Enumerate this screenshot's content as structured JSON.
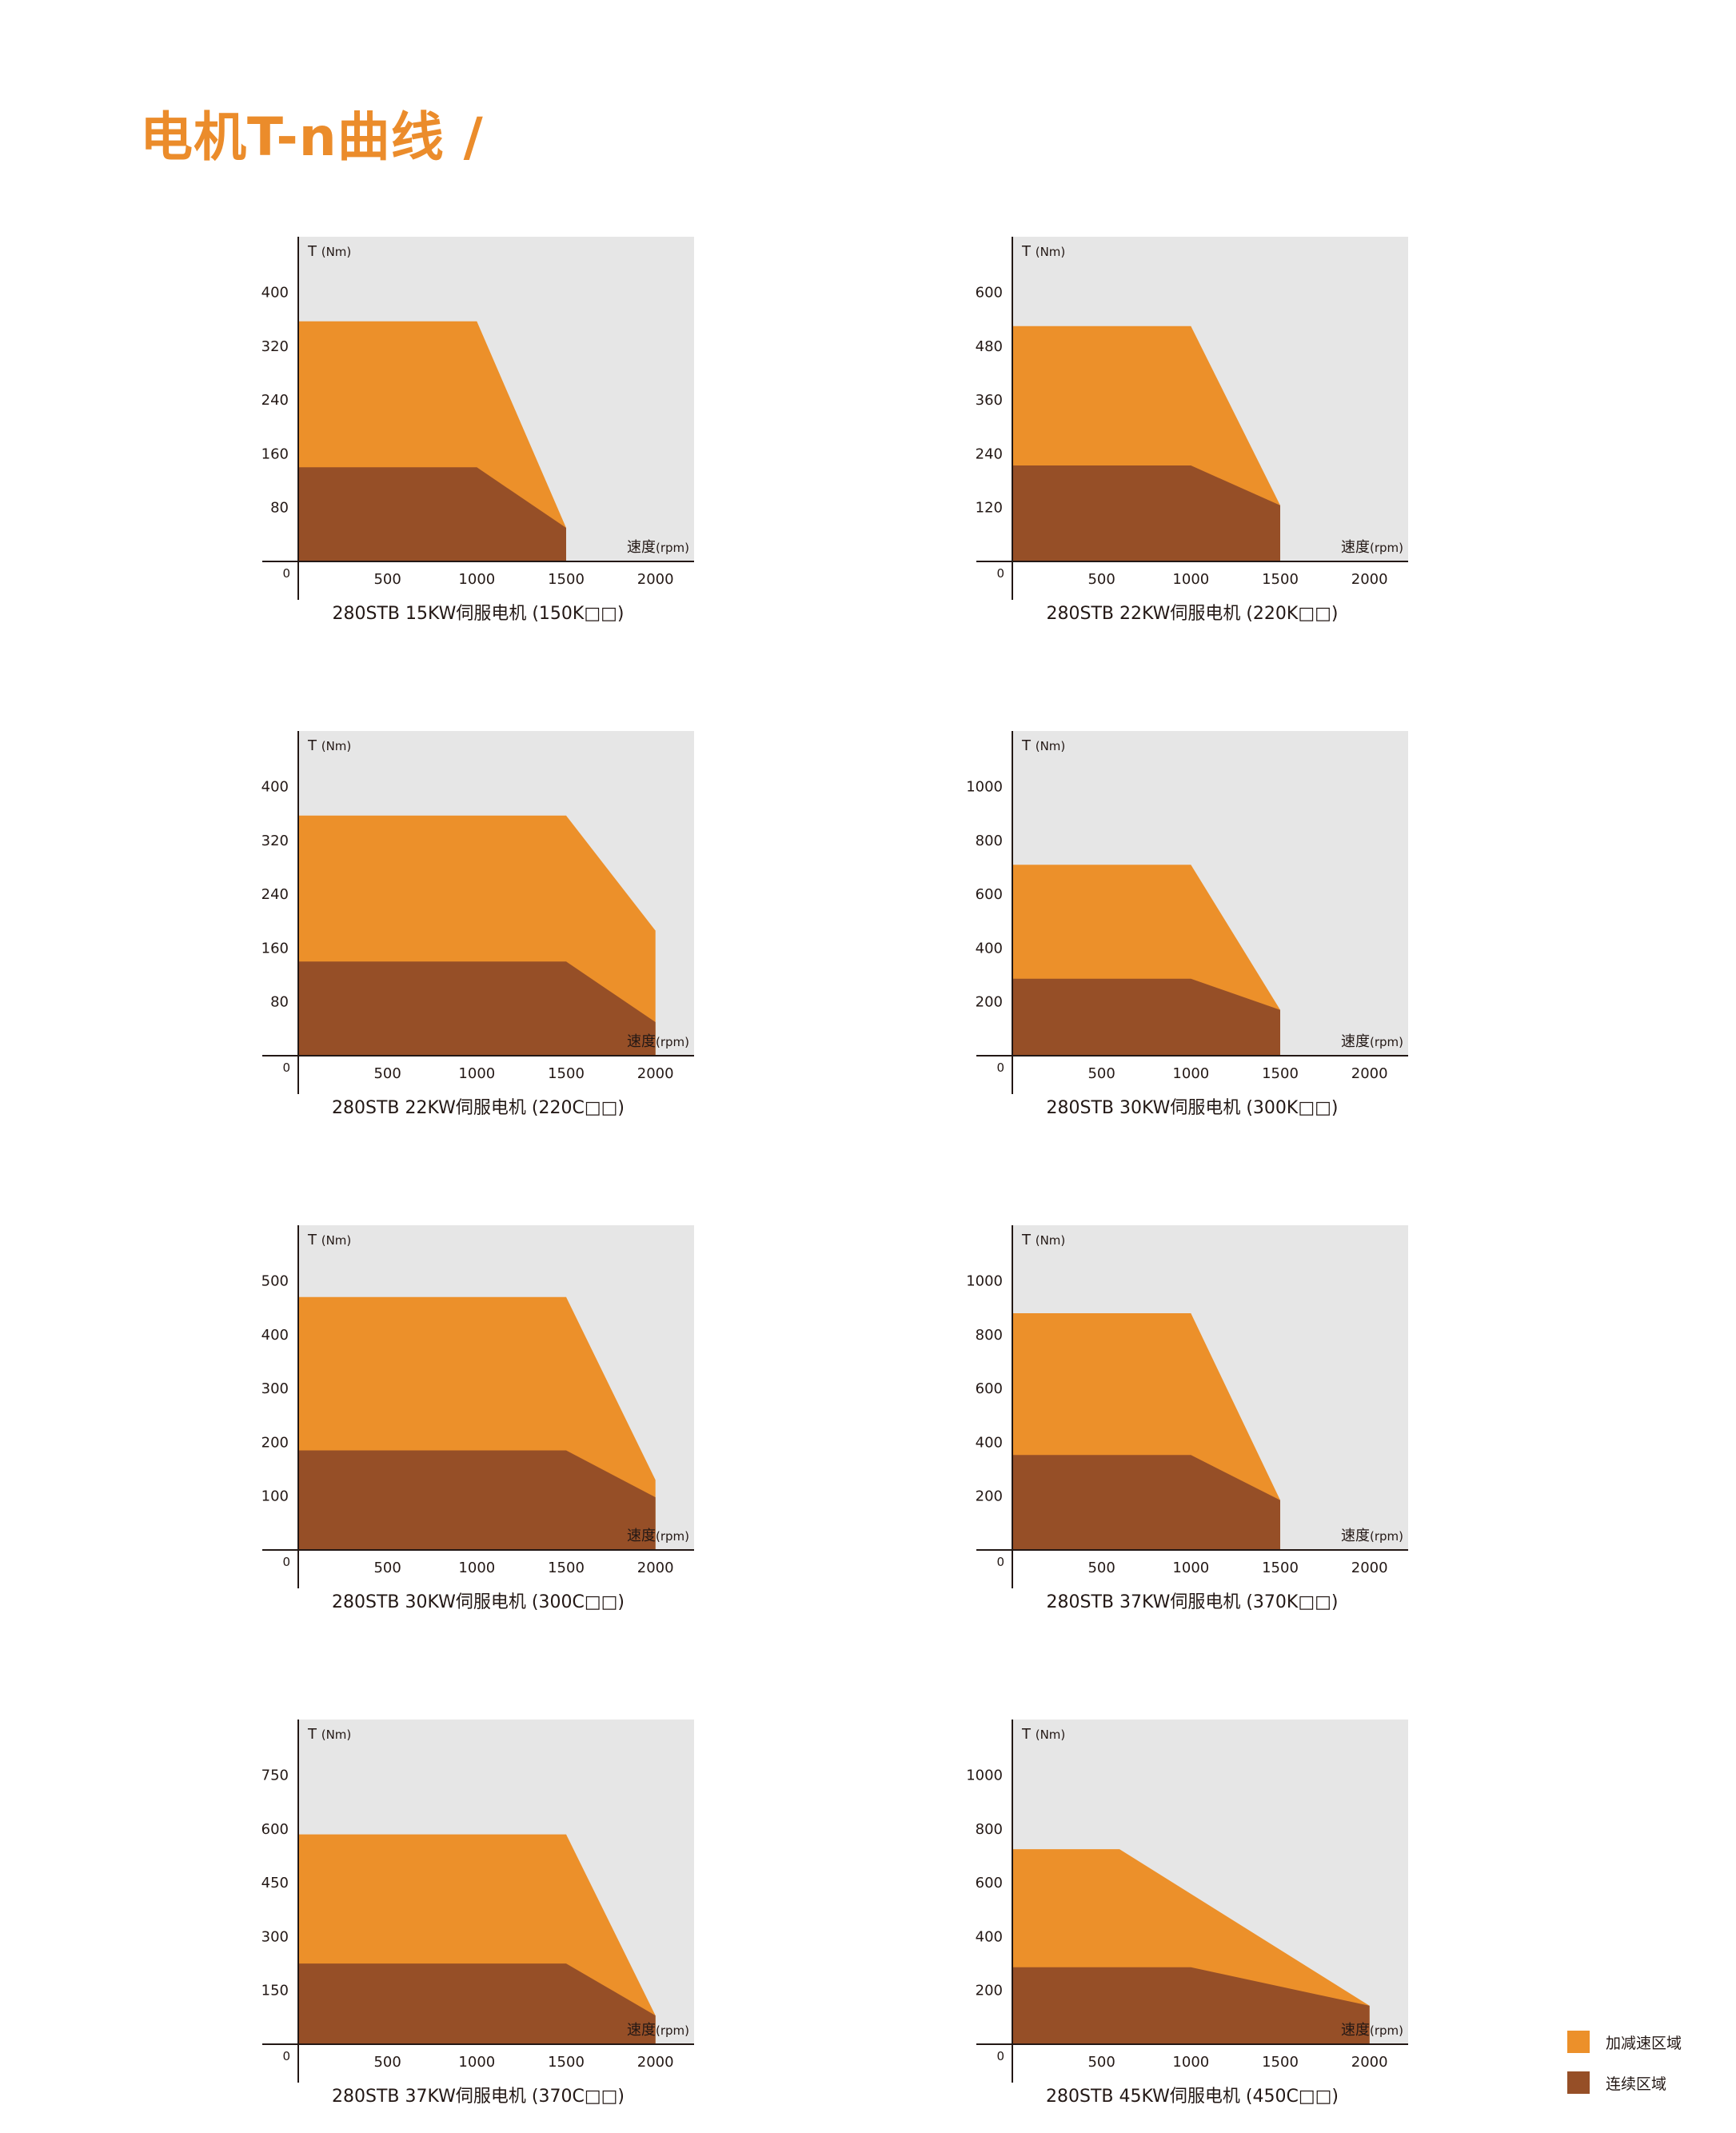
{
  "title": "电机T-n曲线 /",
  "colors": {
    "plot_bg": "#e6e6e6",
    "accel": "#ec902a",
    "continuous": "#964f27",
    "title": "#eb8c2b"
  },
  "legend": {
    "items": [
      {
        "label": "加减速区域",
        "color": "#ec902a"
      },
      {
        "label": "连续区域",
        "color": "#964f27"
      }
    ]
  },
  "chart_data": [
    {
      "type": "area",
      "title": "280STB 15KW伺服电机 (150K□□)",
      "ylabel": "T",
      "yunit": "(Nm)",
      "xlabel": "速度",
      "xunit": "(rpm)",
      "xticks": [
        500,
        1000,
        1500,
        2000
      ],
      "yticks": [
        80,
        160,
        240,
        320,
        400
      ],
      "ylim": [
        0,
        440
      ],
      "xlim": [
        0,
        2550
      ],
      "origin": "0",
      "series": [
        {
          "name": "加减速区域",
          "x": [
            0,
            1000,
            1500
          ],
          "y": [
            357,
            357,
            50
          ]
        },
        {
          "name": "连续区域",
          "x": [
            0,
            1000,
            1500
          ],
          "y": [
            140,
            140,
            50
          ]
        }
      ]
    },
    {
      "type": "area",
      "title": "280STB 22KW伺服电机 (220K□□)",
      "ylabel": "T",
      "yunit": "(Nm)",
      "xlabel": "速度",
      "xunit": "(rpm)",
      "xticks": [
        500,
        1000,
        1500,
        2000
      ],
      "yticks": [
        120,
        240,
        360,
        480,
        600
      ],
      "ylim": [
        0,
        660
      ],
      "xlim": [
        0,
        2550
      ],
      "origin": "0",
      "series": [
        {
          "name": "加减速区域",
          "x": [
            0,
            1000,
            1500
          ],
          "y": [
            525,
            525,
            125
          ]
        },
        {
          "name": "连续区域",
          "x": [
            0,
            1000,
            1500
          ],
          "y": [
            214,
            214,
            125
          ]
        }
      ]
    },
    {
      "type": "area",
      "title": "280STB 22KW伺服电机 (220C□□)",
      "ylabel": "T",
      "yunit": "(Nm)",
      "xlabel": "速度",
      "xunit": "(rpm)",
      "xticks": [
        500,
        1000,
        1500,
        2000
      ],
      "yticks": [
        80,
        160,
        240,
        320,
        400
      ],
      "ylim": [
        0,
        440
      ],
      "xlim": [
        0,
        2550
      ],
      "origin": "0",
      "series": [
        {
          "name": "加减速区域",
          "x": [
            0,
            1500,
            2000
          ],
          "y": [
            357,
            357,
            186
          ]
        },
        {
          "name": "连续区域",
          "x": [
            0,
            1500,
            2000
          ],
          "y": [
            140,
            140,
            50
          ]
        }
      ]
    },
    {
      "type": "area",
      "title": "280STB 30KW伺服电机 (300K□□)",
      "ylabel": "T",
      "yunit": "(Nm)",
      "xlabel": "速度",
      "xunit": "(rpm)",
      "xticks": [
        500,
        1000,
        1500,
        2000
      ],
      "yticks": [
        200,
        400,
        600,
        800,
        1000
      ],
      "ylim": [
        0,
        1100
      ],
      "xlim": [
        0,
        2550
      ],
      "origin": "0",
      "series": [
        {
          "name": "加减速区域",
          "x": [
            0,
            1000,
            1500
          ],
          "y": [
            710,
            710,
            170
          ]
        },
        {
          "name": "连续区域",
          "x": [
            0,
            1000,
            1500
          ],
          "y": [
            286,
            286,
            170
          ]
        }
      ]
    },
    {
      "type": "area",
      "title": "280STB 30KW伺服电机 (300C□□)",
      "ylabel": "T",
      "yunit": "(Nm)",
      "xlabel": "速度",
      "xunit": "(rpm)",
      "xticks": [
        500,
        1000,
        1500,
        2000
      ],
      "yticks": [
        100,
        200,
        300,
        400,
        500
      ],
      "ylim": [
        0,
        550
      ],
      "xlim": [
        0,
        2550
      ],
      "origin": "0",
      "series": [
        {
          "name": "加减速区域",
          "x": [
            0,
            1500,
            2000
          ],
          "y": [
            470,
            470,
            130
          ]
        },
        {
          "name": "连续区域",
          "x": [
            0,
            1500,
            2000
          ],
          "y": [
            185,
            185,
            98
          ]
        }
      ]
    },
    {
      "type": "area",
      "title": "280STB 37KW伺服电机 (370K□□)",
      "ylabel": "T",
      "yunit": "(Nm)",
      "xlabel": "速度",
      "xunit": "(rpm)",
      "xticks": [
        500,
        1000,
        1500,
        2000
      ],
      "yticks": [
        200,
        400,
        600,
        800,
        1000
      ],
      "ylim": [
        0,
        1100
      ],
      "xlim": [
        0,
        2550
      ],
      "origin": "0",
      "series": [
        {
          "name": "加减速区域",
          "x": [
            0,
            1000,
            1500
          ],
          "y": [
            880,
            880,
            185
          ]
        },
        {
          "name": "连续区域",
          "x": [
            0,
            1000,
            1500
          ],
          "y": [
            353,
            353,
            185
          ]
        }
      ]
    },
    {
      "type": "area",
      "title": "280STB 37KW伺服电机 (370C□□)",
      "ylabel": "T",
      "yunit": "(Nm)",
      "xlabel": "速度",
      "xunit": "(rpm)",
      "xticks": [
        500,
        1000,
        1500,
        2000
      ],
      "yticks": [
        150,
        300,
        450,
        600,
        750
      ],
      "ylim": [
        0,
        825
      ],
      "xlim": [
        0,
        2550
      ],
      "origin": "0",
      "series": [
        {
          "name": "加减速区域",
          "x": [
            0,
            1500,
            2000
          ],
          "y": [
            585,
            585,
            80
          ]
        },
        {
          "name": "连续区域",
          "x": [
            0,
            1500,
            2000
          ],
          "y": [
            225,
            225,
            80
          ]
        }
      ]
    },
    {
      "type": "area",
      "title": "280STB 45KW伺服电机 (450C□□)",
      "ylabel": "T",
      "yunit": "(Nm)",
      "xlabel": "速度",
      "xunit": "(rpm)",
      "xticks": [
        500,
        1000,
        1500,
        2000
      ],
      "yticks": [
        200,
        400,
        600,
        800,
        1000
      ],
      "ylim": [
        0,
        1100
      ],
      "xlim": [
        0,
        2550
      ],
      "origin": "0",
      "series": [
        {
          "name": "加减速区域",
          "x": [
            0,
            600,
            2000
          ],
          "y": [
            725,
            725,
            143
          ]
        },
        {
          "name": "连续区域",
          "x": [
            0,
            1000,
            2000
          ],
          "y": [
            286,
            286,
            143
          ]
        }
      ]
    }
  ]
}
